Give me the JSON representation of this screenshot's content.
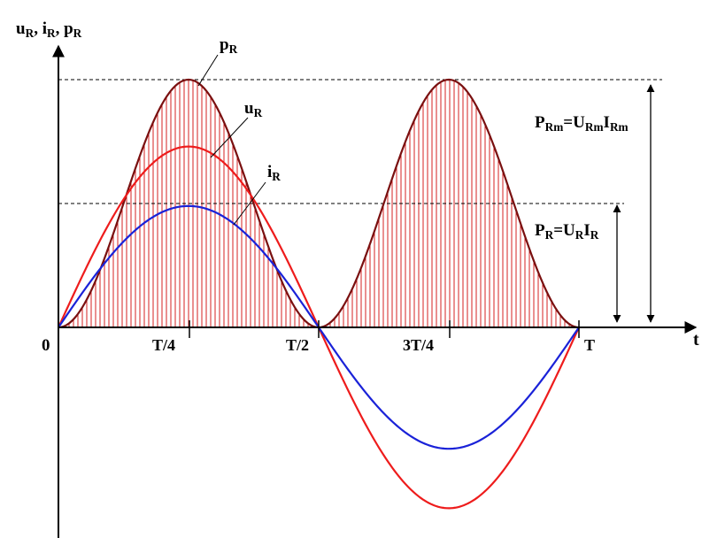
{
  "axes": {
    "y_label": {
      "parts": [
        {
          "t": "u"
        },
        {
          "t": "R",
          "sub": true
        },
        {
          "t": ", i"
        },
        {
          "t": "R",
          "sub": true
        },
        {
          "t": ",  p"
        },
        {
          "t": "R",
          "sub": true
        }
      ]
    },
    "x_label": {
      "parts": [
        {
          "t": "t"
        }
      ]
    },
    "origin_label": {
      "parts": [
        {
          "t": "0"
        }
      ]
    }
  },
  "ticks": {
    "t_quarter": {
      "parts": [
        {
          "t": "T/4"
        }
      ]
    },
    "t_half": {
      "parts": [
        {
          "t": "T/2"
        }
      ]
    },
    "t_three_quarter": {
      "parts": [
        {
          "t": "3T/4"
        }
      ]
    },
    "t_full": {
      "parts": [
        {
          "t": "T"
        }
      ]
    }
  },
  "curves": {
    "p": {
      "label": {
        "parts": [
          {
            "t": "p"
          },
          {
            "t": "R",
            "sub": true
          }
        ]
      },
      "color": "#7a1010",
      "fill": "#d42020",
      "peak": 1.0
    },
    "u": {
      "label": {
        "parts": [
          {
            "t": "u"
          },
          {
            "t": "R",
            "sub": true
          }
        ]
      },
      "color": "#ee1c1c",
      "peak": 0.73
    },
    "i": {
      "label": {
        "parts": [
          {
            "t": "i"
          },
          {
            "t": "R",
            "sub": true
          }
        ]
      },
      "color": "#1a22d8",
      "peak": 0.49
    }
  },
  "annotations": {
    "prm": {
      "parts": [
        {
          "t": "P"
        },
        {
          "t": "Rm",
          "sub": true
        },
        {
          "t": "=U"
        },
        {
          "t": "Rm",
          "sub": true
        },
        {
          "t": "I"
        },
        {
          "t": "Rm",
          "sub": true
        }
      ]
    },
    "pr": {
      "parts": [
        {
          "t": "P"
        },
        {
          "t": "R",
          "sub": true
        },
        {
          "t": "=U"
        },
        {
          "t": "R",
          "sub": true
        },
        {
          "t": "I"
        },
        {
          "t": "R",
          "sub": true
        }
      ]
    },
    "average_level": 0.5
  }
}
